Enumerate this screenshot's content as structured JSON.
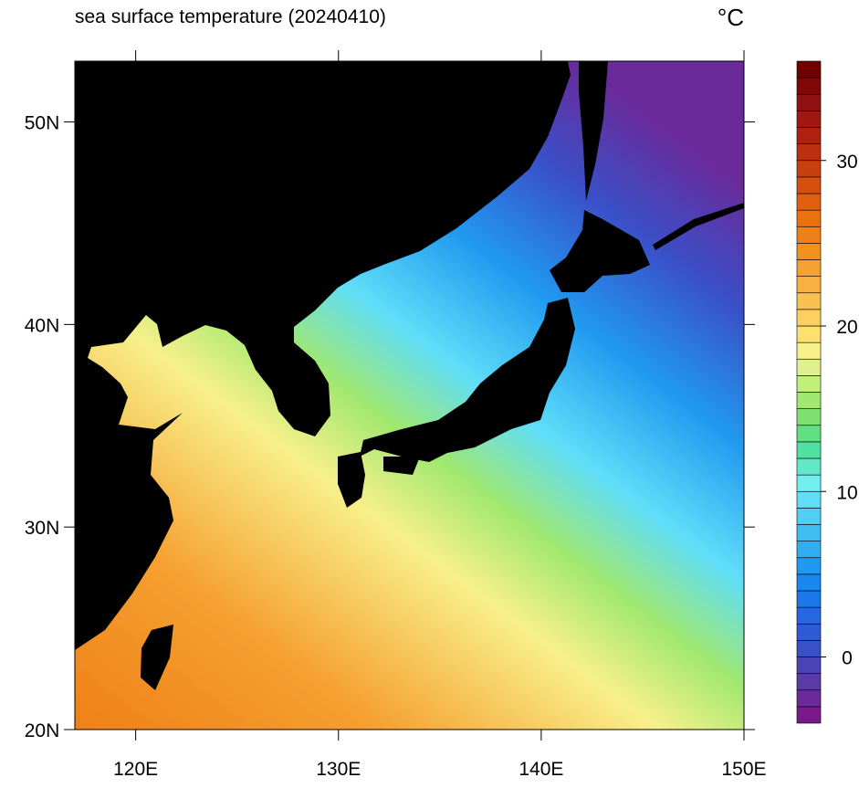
{
  "chart_data": {
    "type": "contour-map",
    "title": "sea surface temperature (20240410)",
    "unit": "°C",
    "xlim": [
      117,
      150
    ],
    "ylim": [
      20,
      53
    ],
    "xticks": [
      {
        "value": 120,
        "label": "120E"
      },
      {
        "value": 130,
        "label": "130E"
      },
      {
        "value": 140,
        "label": "140E"
      },
      {
        "value": 150,
        "label": "150E"
      }
    ],
    "yticks": [
      {
        "value": 20,
        "label": "20N"
      },
      {
        "value": 30,
        "label": "30N"
      },
      {
        "value": 40,
        "label": "40N"
      },
      {
        "value": 50,
        "label": "50N"
      }
    ],
    "colorbar": {
      "levels": [
        -4,
        -3,
        -2,
        -1,
        0,
        1,
        2,
        3,
        4,
        5,
        6,
        7,
        8,
        9,
        10,
        11,
        12,
        13,
        14,
        15,
        16,
        17,
        18,
        19,
        20,
        21,
        22,
        23,
        24,
        25,
        26,
        27,
        28,
        29,
        30,
        31,
        32,
        33,
        34,
        35,
        36
      ],
      "colors": [
        "#7a1a8a",
        "#6a2a9a",
        "#5b3aa8",
        "#4a44b8",
        "#3a50c8",
        "#2f5ad6",
        "#2568e0",
        "#1a78ea",
        "#1888f0",
        "#209af0",
        "#30aef0",
        "#40bef0",
        "#50cef5",
        "#60def8",
        "#70eef0",
        "#60e8c8",
        "#50e0a0",
        "#60e080",
        "#80e070",
        "#a0e870",
        "#c0f078",
        "#e0f090",
        "#f8f08a",
        "#fde070",
        "#fcd060",
        "#fac050",
        "#f8b040",
        "#f5a030",
        "#f29020",
        "#ef8018",
        "#ea7010",
        "#e06010",
        "#d55010",
        "#c84010",
        "#bc3010",
        "#b02010",
        "#a01810",
        "#901010",
        "#800808",
        "#700000"
      ],
      "ticks": [
        0,
        10,
        20,
        30
      ]
    }
  }
}
